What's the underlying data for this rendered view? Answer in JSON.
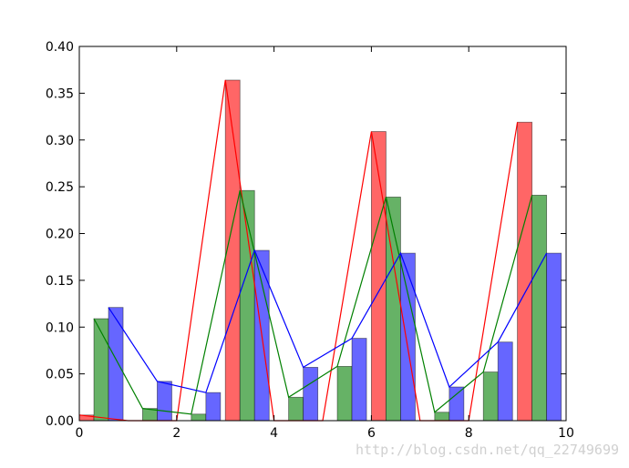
{
  "chart_data": {
    "type": "bar",
    "xlim": [
      0,
      10
    ],
    "ylim": [
      0,
      0.4
    ],
    "x_ticks": [
      0,
      2,
      4,
      6,
      8,
      10
    ],
    "y_ticks": [
      0.0,
      0.05,
      0.1,
      0.15,
      0.2,
      0.25,
      0.3,
      0.35,
      0.4
    ],
    "x_tick_labels": [
      "0",
      "2",
      "4",
      "6",
      "8",
      "10"
    ],
    "y_tick_labels": [
      "0.00",
      "0.05",
      "0.10",
      "0.15",
      "0.20",
      "0.25",
      "0.30",
      "0.35",
      "0.40"
    ],
    "grid": false,
    "colors": {
      "red": "#ff0000",
      "green": "#008000",
      "blue": "#0000ff",
      "red_bar": "#ff6666",
      "green_bar": "#66b266",
      "blue_bar": "#6666ff"
    },
    "bar_width": 0.3,
    "series": [
      {
        "color": "red",
        "bars": [
          {
            "x": 0.0,
            "value": 0.006
          },
          {
            "x": 3.0,
            "value": 0.364
          },
          {
            "x": 6.0,
            "value": 0.309
          },
          {
            "x": 9.0,
            "value": 0.319
          }
        ],
        "line": [
          {
            "x": 0.0,
            "y": 0.006
          },
          {
            "x": 1.0,
            "y": 0.0
          },
          {
            "x": 2.0,
            "y": 0.0
          },
          {
            "x": 3.0,
            "y": 0.364
          },
          {
            "x": 4.0,
            "y": 0.0
          },
          {
            "x": 5.0,
            "y": 0.0
          },
          {
            "x": 6.0,
            "y": 0.309
          },
          {
            "x": 7.0,
            "y": 0.0
          },
          {
            "x": 8.0,
            "y": 0.0
          },
          {
            "x": 9.0,
            "y": 0.319
          }
        ]
      },
      {
        "color": "green",
        "bars": [
          {
            "x": 0.3,
            "value": 0.109
          },
          {
            "x": 1.3,
            "value": 0.013
          },
          {
            "x": 2.3,
            "value": 0.007
          },
          {
            "x": 3.3,
            "value": 0.246
          },
          {
            "x": 4.3,
            "value": 0.025
          },
          {
            "x": 5.3,
            "value": 0.058
          },
          {
            "x": 6.3,
            "value": 0.239
          },
          {
            "x": 7.3,
            "value": 0.009
          },
          {
            "x": 8.3,
            "value": 0.052
          },
          {
            "x": 9.3,
            "value": 0.241
          }
        ],
        "line": [
          {
            "x": 0.3,
            "y": 0.109
          },
          {
            "x": 1.3,
            "y": 0.013
          },
          {
            "x": 2.3,
            "y": 0.007
          },
          {
            "x": 3.3,
            "y": 0.246
          },
          {
            "x": 4.3,
            "y": 0.025
          },
          {
            "x": 5.3,
            "y": 0.058
          },
          {
            "x": 6.3,
            "y": 0.239
          },
          {
            "x": 7.3,
            "y": 0.009
          },
          {
            "x": 8.3,
            "y": 0.052
          },
          {
            "x": 9.3,
            "y": 0.241
          }
        ]
      },
      {
        "color": "blue",
        "bars": [
          {
            "x": 0.6,
            "value": 0.121
          },
          {
            "x": 1.6,
            "value": 0.042
          },
          {
            "x": 2.6,
            "value": 0.03
          },
          {
            "x": 3.6,
            "value": 0.182
          },
          {
            "x": 4.6,
            "value": 0.057
          },
          {
            "x": 5.6,
            "value": 0.088
          },
          {
            "x": 6.6,
            "value": 0.179
          },
          {
            "x": 7.6,
            "value": 0.036
          },
          {
            "x": 8.6,
            "value": 0.084
          },
          {
            "x": 9.6,
            "value": 0.179
          }
        ],
        "line": [
          {
            "x": 0.6,
            "y": 0.121
          },
          {
            "x": 1.6,
            "y": 0.042
          },
          {
            "x": 2.6,
            "y": 0.03
          },
          {
            "x": 3.6,
            "y": 0.182
          },
          {
            "x": 4.6,
            "y": 0.057
          },
          {
            "x": 5.6,
            "y": 0.088
          },
          {
            "x": 6.6,
            "y": 0.179
          },
          {
            "x": 7.6,
            "y": 0.036
          },
          {
            "x": 8.6,
            "y": 0.084
          },
          {
            "x": 9.6,
            "y": 0.179
          }
        ]
      }
    ]
  },
  "watermark": "http://blog.csdn.net/qq_22749699"
}
